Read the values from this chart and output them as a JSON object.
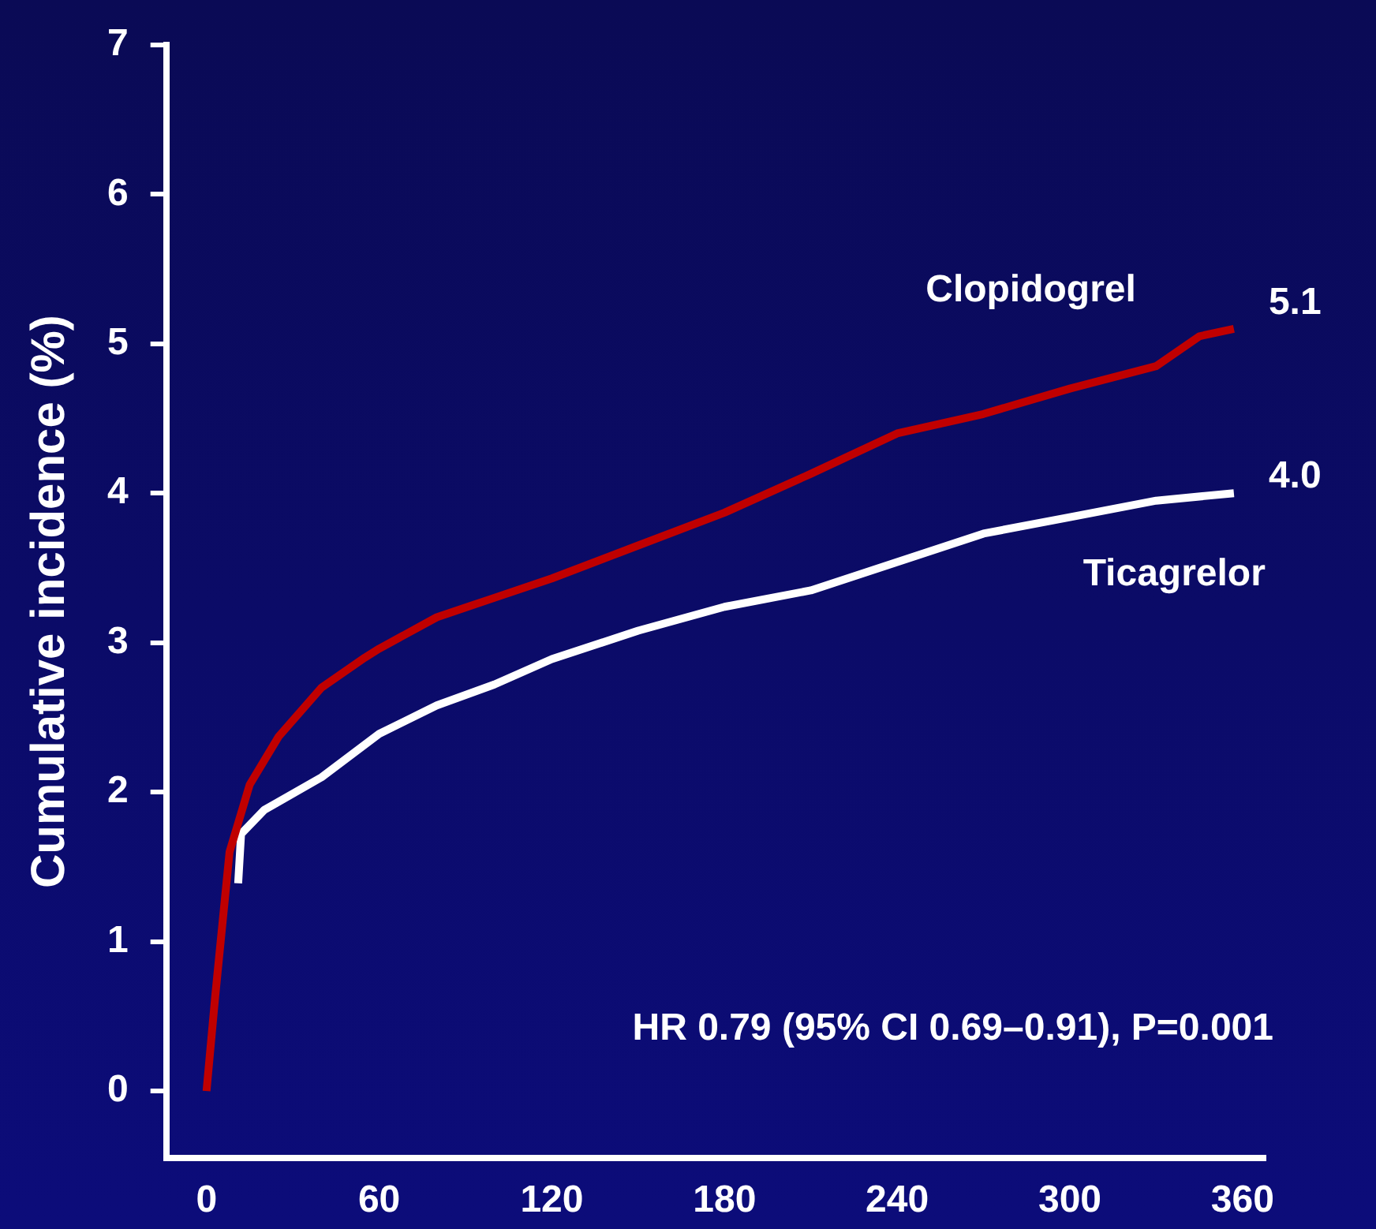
{
  "chart_data": {
    "type": "line",
    "ylabel": "Cumulative incidence (%)",
    "xlim": [
      -14,
      368
    ],
    "xticks": [
      0,
      60,
      120,
      180,
      240,
      300,
      360
    ],
    "ylim": [
      -0.45,
      7
    ],
    "yticks": [
      0,
      1,
      2,
      3,
      4,
      5,
      6,
      7
    ],
    "grid": false,
    "legend": false,
    "marker": "none",
    "line_style": "solid",
    "annotations": [
      "HR 0.79 (95% CI 0.69–0.91), P=0.001"
    ],
    "series": [
      {
        "name": "Clopidogrel",
        "color": "#c00000",
        "x": [
          0,
          3,
          8,
          15,
          25,
          40,
          55,
          60,
          80,
          100,
          120,
          150,
          180,
          210,
          240,
          270,
          300,
          330,
          345,
          357
        ],
        "values": [
          0,
          0.63,
          1.6,
          2.05,
          2.37,
          2.7,
          2.9,
          2.96,
          3.17,
          3.3,
          3.43,
          3.65,
          3.87,
          4.13,
          4.4,
          4.53,
          4.7,
          4.85,
          5.05,
          5.1
        ],
        "value_labels": [
          null,
          null,
          null,
          null,
          null,
          null,
          null,
          null,
          null,
          null,
          null,
          null,
          null,
          null,
          null,
          null,
          null,
          null,
          null,
          "5.1"
        ]
      },
      {
        "name": "Ticagrelor",
        "color": "#ffffff",
        "x": [
          11,
          12,
          20,
          40,
          60,
          80,
          100,
          120,
          150,
          180,
          210,
          240,
          270,
          300,
          330,
          357
        ],
        "values": [
          1.39,
          1.72,
          1.88,
          2.1,
          2.39,
          2.58,
          2.72,
          2.89,
          3.08,
          3.24,
          3.35,
          3.54,
          3.73,
          3.84,
          3.95,
          4.0
        ],
        "value_labels": [
          null,
          null,
          null,
          null,
          null,
          null,
          null,
          null,
          null,
          null,
          null,
          null,
          null,
          null,
          null,
          "4.0"
        ]
      }
    ]
  }
}
